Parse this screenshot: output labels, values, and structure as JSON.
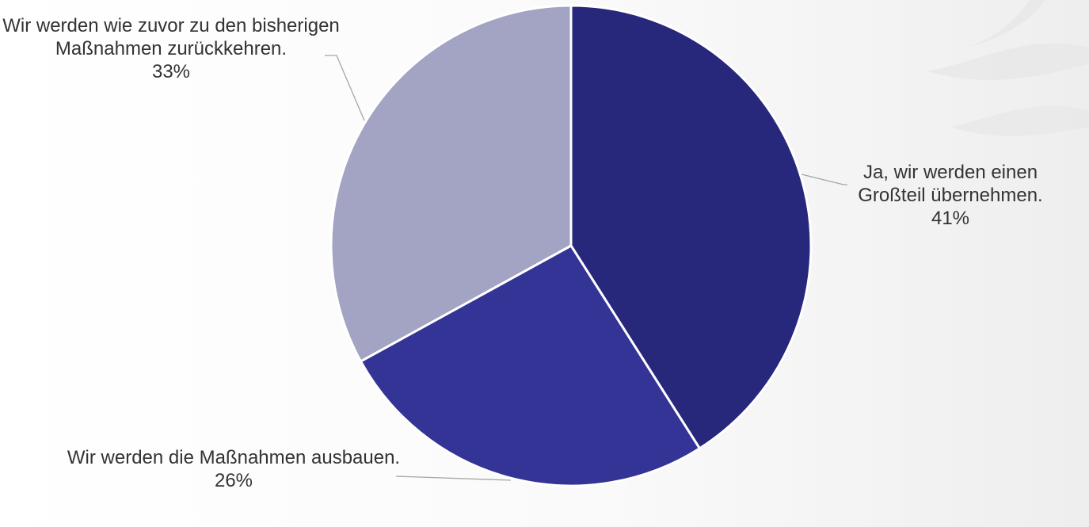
{
  "chart_data": {
    "type": "pie",
    "categories": [
      "Ja, wir werden einen Großteil übernehmen.",
      "Wir werden die Maßnahmen ausbauen.",
      "Wir werden wie zuvor zu den bisherigen Maßnahmen zurückkehren."
    ],
    "values": [
      41,
      26,
      33
    ],
    "value_labels": [
      "41%",
      "26%",
      "33%"
    ],
    "colors": [
      "#27277c",
      "#343497",
      "#a3a3c4"
    ]
  }
}
